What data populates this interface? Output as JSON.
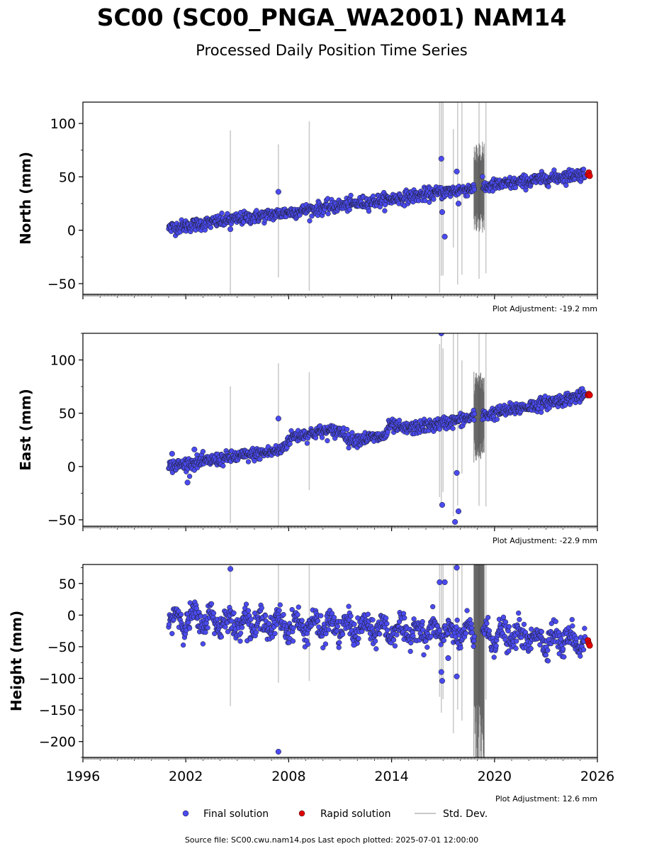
{
  "title": "SC00 (SC00_PNGA_WA2001) NAM14",
  "subtitle": "Processed Daily Position Time Series",
  "source_note": "Source file: SC00.cwu.nam14.pos  Last epoch plotted: 2025-07-01 12:00:00",
  "legend": {
    "final": "Final solution",
    "rapid": "Rapid solution",
    "stddev": "Std. Dev."
  },
  "colors": {
    "final": "#4a4af0",
    "final_edge": "#1a1a1a",
    "rapid": "#e00000",
    "stddev": "#c8c8c8",
    "stddev_dense": "#555555",
    "axis": "#000000"
  },
  "chart_data": [
    {
      "type": "scatter",
      "ylabel": "North (mm)",
      "xlim": [
        1996,
        2026
      ],
      "ylim": [
        -60,
        120
      ],
      "yticks": [
        -50,
        0,
        50,
        100
      ],
      "adjustment": "Plot Adjustment: -19.2 mm",
      "series": [
        {
          "name": "Final solution",
          "trend": [
            [
              2001.0,
              2.0
            ],
            [
              2025.3,
              53.0
            ]
          ],
          "noise": 3
        },
        {
          "name": "Rapid solution",
          "points": [
            [
              2025.45,
              52
            ],
            [
              2025.5,
              54
            ],
            [
              2025.55,
              51
            ]
          ]
        }
      ],
      "outliers": [
        [
          2004.6,
          1
        ],
        [
          2007.4,
          36
        ],
        [
          2016.9,
          67
        ],
        [
          2016.95,
          17
        ],
        [
          2017.1,
          -6
        ],
        [
          2017.9,
          25
        ],
        [
          2017.8,
          55
        ]
      ]
    },
    {
      "type": "scatter",
      "ylabel": "East (mm)",
      "xlim": [
        1996,
        2026
      ],
      "ylim": [
        -56,
        125
      ],
      "yticks": [
        -50,
        0,
        50,
        100
      ],
      "adjustment": "Plot Adjustment: -22.9 mm",
      "series": [
        {
          "name": "Final solution",
          "trend": [
            [
              2001.0,
              0.0
            ],
            [
              2007.5,
              15.0
            ],
            [
              2008.2,
              28.0
            ],
            [
              2010.0,
              33.0
            ],
            [
              2011.2,
              33.0
            ],
            [
              2011.5,
              25.0
            ],
            [
              2013.6,
              28.0
            ],
            [
              2013.9,
              39.0
            ],
            [
              2014.7,
              35.0
            ],
            [
              2016.5,
              39.0
            ],
            [
              2025.3,
              67.0
            ]
          ],
          "noise": 3
        },
        {
          "name": "Rapid solution",
          "points": [
            [
              2025.45,
              67
            ],
            [
              2025.5,
              68
            ],
            [
              2025.55,
              67
            ]
          ]
        }
      ],
      "outliers": [
        [
          2001.2,
          12
        ],
        [
          2002.1,
          -15
        ],
        [
          2002.5,
          16
        ],
        [
          2007.4,
          45
        ],
        [
          2016.9,
          125
        ],
        [
          2016.95,
          -36
        ],
        [
          2017.8,
          -6
        ],
        [
          2017.7,
          -52
        ],
        [
          2017.9,
          -42
        ]
      ]
    },
    {
      "type": "scatter",
      "ylabel": "Height (mm)",
      "xlim": [
        1996,
        2026
      ],
      "ylim": [
        -225,
        80
      ],
      "yticks": [
        -200,
        -150,
        -100,
        -50,
        0,
        50
      ],
      "xticks": [
        1996,
        2002,
        2008,
        2014,
        2020,
        2026
      ],
      "adjustment": "Plot Adjustment: 12.6 mm",
      "series": [
        {
          "name": "Final solution",
          "trend": [
            [
              2001.0,
              -5.0
            ],
            [
              2025.3,
              -40.0
            ]
          ],
          "noise": 10,
          "seasonal": 12
        },
        {
          "name": "Rapid solution",
          "points": [
            [
              2025.45,
              -40
            ],
            [
              2025.5,
              -45
            ],
            [
              2025.55,
              -48
            ]
          ]
        }
      ],
      "outliers": [
        [
          2004.6,
          73
        ],
        [
          2007.4,
          -216
        ],
        [
          2011.8,
          -47
        ],
        [
          2016.8,
          52
        ],
        [
          2016.9,
          -90
        ],
        [
          2016.95,
          -104
        ],
        [
          2017.1,
          52
        ],
        [
          2017.3,
          -68
        ],
        [
          2017.8,
          75
        ],
        [
          2017.8,
          -97
        ]
      ]
    }
  ]
}
